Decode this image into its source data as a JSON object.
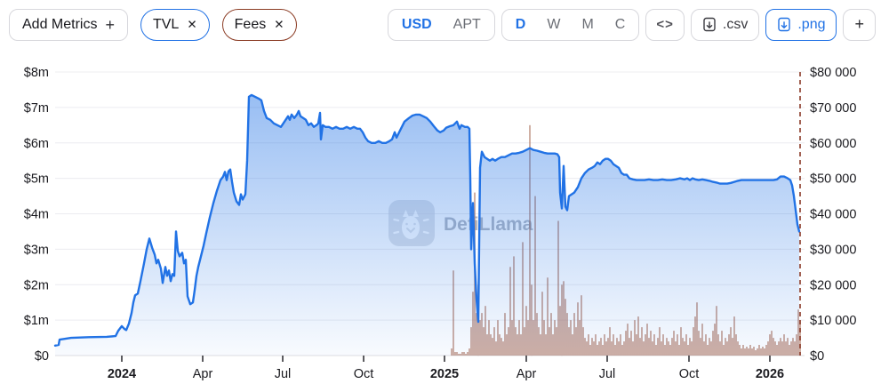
{
  "toolbar": {
    "add_metrics": {
      "label": "Add Metrics",
      "icon": "+"
    },
    "metric_chips": [
      {
        "label": "TVL",
        "close_icon": "✕",
        "accent": "#2172e5"
      },
      {
        "label": "Fees",
        "close_icon": "✕",
        "accent": "#8a3a22"
      }
    ],
    "currency_toggle": {
      "options": [
        "USD",
        "APT"
      ],
      "selected": "USD"
    },
    "interval_toggle": {
      "options": [
        "D",
        "W",
        "M",
        "C"
      ],
      "selected": "D"
    },
    "embed_button": {
      "icon": "<>"
    },
    "csv_button": {
      "label": ".csv"
    },
    "png_button": {
      "label": ".png"
    },
    "add_chart_button": {
      "label": "+"
    }
  },
  "watermark": {
    "text": "DefiLlama"
  },
  "chart_data": {
    "type": "line+bar",
    "title": "",
    "x_axis": {
      "total_days": 843,
      "today_marker_day": 838,
      "ticks": [
        {
          "day": 75,
          "label": "2024",
          "bold": true
        },
        {
          "day": 166,
          "label": "Apr",
          "bold": false
        },
        {
          "day": 256,
          "label": "Jul",
          "bold": false
        },
        {
          "day": 347,
          "label": "Oct",
          "bold": false
        },
        {
          "day": 438,
          "label": "2025",
          "bold": true
        },
        {
          "day": 530,
          "label": "Apr",
          "bold": false
        },
        {
          "day": 621,
          "label": "Jul",
          "bold": false
        },
        {
          "day": 713,
          "label": "Oct",
          "bold": false
        },
        {
          "day": 804,
          "label": "2026",
          "bold": true
        }
      ]
    },
    "left_axis": {
      "max": 8,
      "unit": "millions USD (TVL)",
      "tick_labels": [
        "$0",
        "$1m",
        "$2m",
        "$3m",
        "$4m",
        "$5m",
        "$6m",
        "$7m",
        "$8m"
      ]
    },
    "right_axis": {
      "max": 80,
      "unit": "thousands USD (Fees)",
      "tick_labels": [
        "$0",
        "$10 000",
        "$20 000",
        "$30 000",
        "$40 000",
        "$50 000",
        "$60 000",
        "$70 000",
        "$80 000"
      ]
    },
    "grid_color": "#ececf0",
    "today_line_color": "#8a3a28",
    "series": [
      {
        "name": "TVL",
        "type": "area-line",
        "axis": "left",
        "color": "#2172e5",
        "points_day_musd": [
          [
            0,
            0.28
          ],
          [
            4,
            0.3
          ],
          [
            5,
            0.45
          ],
          [
            10,
            0.47
          ],
          [
            18,
            0.5
          ],
          [
            38,
            0.52
          ],
          [
            58,
            0.53
          ],
          [
            68,
            0.55
          ],
          [
            71,
            0.7
          ],
          [
            75,
            0.83
          ],
          [
            78,
            0.75
          ],
          [
            80,
            0.72
          ],
          [
            83,
            0.9
          ],
          [
            86,
            1.2
          ],
          [
            88,
            1.5
          ],
          [
            90,
            1.7
          ],
          [
            93,
            1.75
          ],
          [
            96,
            2.1
          ],
          [
            100,
            2.6
          ],
          [
            103,
            3.0
          ],
          [
            106,
            3.3
          ],
          [
            109,
            3.05
          ],
          [
            112,
            2.85
          ],
          [
            114,
            2.6
          ],
          [
            116,
            2.7
          ],
          [
            119,
            2.45
          ],
          [
            121,
            2.05
          ],
          [
            124,
            2.5
          ],
          [
            126,
            2.25
          ],
          [
            128,
            2.4
          ],
          [
            130,
            2.1
          ],
          [
            132,
            2.3
          ],
          [
            134,
            2.25
          ],
          [
            136,
            3.5
          ],
          [
            138,
            2.95
          ],
          [
            140,
            2.8
          ],
          [
            143,
            2.9
          ],
          [
            145,
            2.6
          ],
          [
            147,
            2.7
          ],
          [
            149,
            1.67
          ],
          [
            152,
            1.45
          ],
          [
            155,
            1.5
          ],
          [
            157,
            1.85
          ],
          [
            159,
            2.25
          ],
          [
            161,
            2.5
          ],
          [
            164,
            2.8
          ],
          [
            167,
            3.1
          ],
          [
            170,
            3.45
          ],
          [
            174,
            3.9
          ],
          [
            178,
            4.3
          ],
          [
            182,
            4.65
          ],
          [
            186,
            4.95
          ],
          [
            189,
            5.05
          ],
          [
            191,
            5.18
          ],
          [
            193,
            4.95
          ],
          [
            195,
            5.2
          ],
          [
            197,
            5.25
          ],
          [
            199,
            4.9
          ],
          [
            201,
            4.6
          ],
          [
            204,
            4.35
          ],
          [
            207,
            4.25
          ],
          [
            209,
            4.55
          ],
          [
            211,
            4.4
          ],
          [
            214,
            4.55
          ],
          [
            216,
            5.5
          ],
          [
            218,
            7.3
          ],
          [
            221,
            7.35
          ],
          [
            225,
            7.3
          ],
          [
            229,
            7.25
          ],
          [
            232,
            7.2
          ],
          [
            235,
            6.9
          ],
          [
            238,
            6.7
          ],
          [
            242,
            6.65
          ],
          [
            246,
            6.55
          ],
          [
            250,
            6.5
          ],
          [
            254,
            6.45
          ],
          [
            258,
            6.6
          ],
          [
            262,
            6.75
          ],
          [
            264,
            6.65
          ],
          [
            266,
            6.8
          ],
          [
            269,
            6.7
          ],
          [
            272,
            6.8
          ],
          [
            274,
            6.9
          ],
          [
            276,
            6.75
          ],
          [
            279,
            6.7
          ],
          [
            282,
            6.65
          ],
          [
            285,
            6.5
          ],
          [
            288,
            6.55
          ],
          [
            291,
            6.45
          ],
          [
            294,
            6.5
          ],
          [
            296,
            6.55
          ],
          [
            298,
            6.85
          ],
          [
            299,
            6.1
          ],
          [
            301,
            6.5
          ],
          [
            304,
            6.45
          ],
          [
            308,
            6.45
          ],
          [
            312,
            6.4
          ],
          [
            316,
            6.45
          ],
          [
            320,
            6.4
          ],
          [
            324,
            6.4
          ],
          [
            328,
            6.45
          ],
          [
            332,
            6.4
          ],
          [
            336,
            6.45
          ],
          [
            340,
            6.4
          ],
          [
            343,
            6.4
          ],
          [
            346,
            6.3
          ],
          [
            349,
            6.15
          ],
          [
            352,
            6.05
          ],
          [
            356,
            6.0
          ],
          [
            360,
            6.0
          ],
          [
            364,
            6.05
          ],
          [
            368,
            6.0
          ],
          [
            372,
            6.0
          ],
          [
            376,
            6.05
          ],
          [
            379,
            6.1
          ],
          [
            382,
            6.3
          ],
          [
            384,
            6.15
          ],
          [
            388,
            6.35
          ],
          [
            393,
            6.6
          ],
          [
            398,
            6.7
          ],
          [
            402,
            6.77
          ],
          [
            406,
            6.8
          ],
          [
            410,
            6.8
          ],
          [
            414,
            6.75
          ],
          [
            418,
            6.7
          ],
          [
            422,
            6.6
          ],
          [
            426,
            6.47
          ],
          [
            430,
            6.35
          ],
          [
            433,
            6.3
          ],
          [
            437,
            6.35
          ],
          [
            440,
            6.43
          ],
          [
            444,
            6.47
          ],
          [
            448,
            6.5
          ],
          [
            452,
            6.6
          ],
          [
            455,
            6.4
          ],
          [
            457,
            6.5
          ],
          [
            461,
            6.45
          ],
          [
            464,
            6.45
          ],
          [
            466,
            6.4
          ],
          [
            467,
            5.0
          ],
          [
            468,
            3.0
          ],
          [
            470,
            4.3
          ],
          [
            472,
            2.6
          ],
          [
            474,
            1.6
          ],
          [
            476,
            0.95
          ],
          [
            478,
            5.3
          ],
          [
            480,
            5.75
          ],
          [
            483,
            5.6
          ],
          [
            486,
            5.55
          ],
          [
            489,
            5.5
          ],
          [
            492,
            5.55
          ],
          [
            495,
            5.5
          ],
          [
            498,
            5.55
          ],
          [
            502,
            5.6
          ],
          [
            506,
            5.6
          ],
          [
            510,
            5.65
          ],
          [
            514,
            5.7
          ],
          [
            518,
            5.7
          ],
          [
            522,
            5.72
          ],
          [
            526,
            5.75
          ],
          [
            530,
            5.8
          ],
          [
            534,
            5.85
          ],
          [
            538,
            5.8
          ],
          [
            542,
            5.78
          ],
          [
            546,
            5.75
          ],
          [
            550,
            5.72
          ],
          [
            554,
            5.7
          ],
          [
            558,
            5.7
          ],
          [
            562,
            5.7
          ],
          [
            565,
            5.68
          ],
          [
            567,
            5.6
          ],
          [
            568,
            4.6
          ],
          [
            570,
            4.15
          ],
          [
            572,
            5.35
          ],
          [
            574,
            4.2
          ],
          [
            576,
            4.1
          ],
          [
            578,
            4.5
          ],
          [
            581,
            4.55
          ],
          [
            584,
            4.6
          ],
          [
            588,
            4.75
          ],
          [
            592,
            5.0
          ],
          [
            596,
            5.15
          ],
          [
            600,
            5.25
          ],
          [
            604,
            5.3
          ],
          [
            607,
            5.35
          ],
          [
            610,
            5.45
          ],
          [
            613,
            5.4
          ],
          [
            616,
            5.5
          ],
          [
            619,
            5.55
          ],
          [
            622,
            5.55
          ],
          [
            625,
            5.5
          ],
          [
            628,
            5.4
          ],
          [
            631,
            5.35
          ],
          [
            634,
            5.3
          ],
          [
            637,
            5.15
          ],
          [
            640,
            5.1
          ],
          [
            643,
            5.1
          ],
          [
            646,
            5.0
          ],
          [
            650,
            4.97
          ],
          [
            654,
            4.95
          ],
          [
            658,
            4.95
          ],
          [
            663,
            4.95
          ],
          [
            668,
            4.97
          ],
          [
            673,
            4.95
          ],
          [
            678,
            4.95
          ],
          [
            683,
            4.97
          ],
          [
            688,
            4.95
          ],
          [
            693,
            4.95
          ],
          [
            698,
            4.97
          ],
          [
            703,
            5.0
          ],
          [
            708,
            4.97
          ],
          [
            711,
            5.0
          ],
          [
            714,
            4.95
          ],
          [
            717,
            5.0
          ],
          [
            720,
            4.97
          ],
          [
            724,
            4.95
          ],
          [
            728,
            4.97
          ],
          [
            732,
            4.95
          ],
          [
            736,
            4.93
          ],
          [
            740,
            4.9
          ],
          [
            744,
            4.88
          ],
          [
            748,
            4.85
          ],
          [
            752,
            4.85
          ],
          [
            756,
            4.85
          ],
          [
            760,
            4.87
          ],
          [
            764,
            4.9
          ],
          [
            768,
            4.93
          ],
          [
            772,
            4.95
          ],
          [
            776,
            4.95
          ],
          [
            780,
            4.95
          ],
          [
            784,
            4.95
          ],
          [
            788,
            4.95
          ],
          [
            792,
            4.95
          ],
          [
            796,
            4.95
          ],
          [
            800,
            4.95
          ],
          [
            804,
            4.95
          ],
          [
            808,
            4.95
          ],
          [
            812,
            4.97
          ],
          [
            816,
            5.05
          ],
          [
            820,
            5.05
          ],
          [
            824,
            5.0
          ],
          [
            827,
            4.95
          ],
          [
            829,
            4.8
          ],
          [
            831,
            4.5
          ],
          [
            833,
            4.1
          ],
          [
            835,
            3.7
          ],
          [
            837,
            3.5
          ]
        ]
      },
      {
        "name": "Fees",
        "type": "bars",
        "axis": "right",
        "color": "#a2604a",
        "start_day": 444,
        "step_days": 2,
        "values_kusd": [
          0,
          2,
          24,
          1,
          1,
          0.5,
          0.5,
          1,
          1,
          0.5,
          1,
          2,
          8,
          18,
          46,
          12,
          20,
          10,
          12,
          8,
          14,
          6,
          10,
          6,
          5,
          8,
          4,
          10,
          6,
          5,
          4,
          12,
          6,
          8,
          25,
          10,
          28,
          8,
          6,
          10,
          6,
          32,
          8,
          14,
          10,
          65,
          20,
          10,
          45,
          12,
          8,
          6,
          18,
          10,
          6,
          22,
          8,
          12,
          6,
          10,
          8,
          38,
          14,
          20,
          21,
          16,
          12,
          8,
          10,
          6,
          12,
          8,
          15,
          10,
          17,
          8,
          5,
          4,
          6,
          3,
          5,
          4,
          6,
          3,
          4,
          5,
          3,
          6,
          4,
          5,
          8,
          4,
          6,
          3,
          5,
          4,
          6,
          3,
          4,
          7,
          9,
          5,
          7,
          4,
          10,
          6,
          11,
          5,
          8,
          4,
          6,
          9,
          5,
          7,
          4,
          6,
          3,
          5,
          8,
          4,
          6,
          3,
          5,
          4,
          3,
          5,
          7,
          4,
          6,
          3,
          8,
          5,
          4,
          6,
          3,
          5,
          4,
          8,
          11,
          15,
          7,
          5,
          9,
          4,
          6,
          3,
          5,
          4,
          7,
          9,
          14,
          6,
          4,
          7,
          3,
          5,
          4,
          6,
          8,
          5,
          11,
          6,
          4,
          3,
          2,
          3,
          2,
          2.5,
          2,
          3,
          2,
          2.5,
          1.5,
          2,
          3,
          2,
          2.5,
          2,
          3,
          4,
          6,
          7,
          5,
          4,
          3,
          4,
          5,
          4,
          6,
          4,
          5,
          3,
          4,
          5,
          4,
          6,
          13,
          10
        ]
      }
    ]
  }
}
